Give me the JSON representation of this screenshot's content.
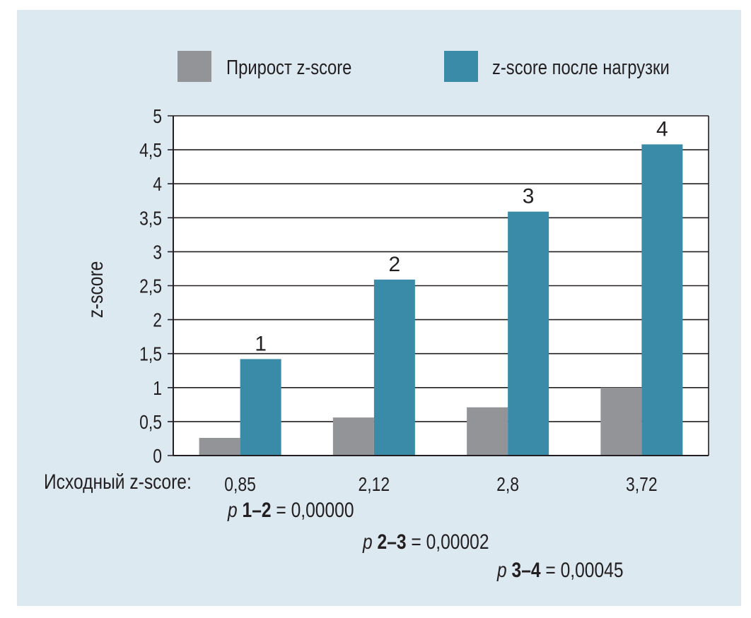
{
  "chart_data": {
    "type": "bar",
    "legend": {
      "placement": "top"
    },
    "series": [
      {
        "name": "Прирост z-score",
        "color": "#929497",
        "values": [
          0.26,
          0.56,
          0.71,
          1.0
        ]
      },
      {
        "name": "z-score после нагрузки",
        "color": "#3a8ba8",
        "values": [
          1.42,
          2.59,
          3.59,
          4.58
        ]
      }
    ],
    "categories": [
      "0,85",
      "2,12",
      "2,8",
      "3,72"
    ],
    "x_category_title": "Исходный z-score:",
    "ylabel": "z-score",
    "ylim": [
      0,
      5
    ],
    "yticks": [
      0,
      0.5,
      1,
      1.5,
      2,
      2.5,
      3,
      3.5,
      4,
      4.5,
      5
    ],
    "ytick_labels": [
      "0",
      "0,5",
      "1",
      "1,5",
      "2",
      "2,5",
      "3",
      "3,5",
      "4",
      "4,5",
      "5"
    ],
    "grid": true,
    "bar_labels": [
      "1",
      "2",
      "3",
      "4"
    ],
    "plot_background": "#ffffff",
    "annotations": [
      {
        "p": "p",
        "pair": "1–2",
        "eq": " = 0,00000"
      },
      {
        "p": "p",
        "pair": "2–3",
        "eq": " = 0,00002"
      },
      {
        "p": "p",
        "pair": "3–4",
        "eq": " = 0,00045"
      }
    ]
  },
  "colors": {
    "panel_background": "#dde9f1",
    "text": "#231f20"
  }
}
